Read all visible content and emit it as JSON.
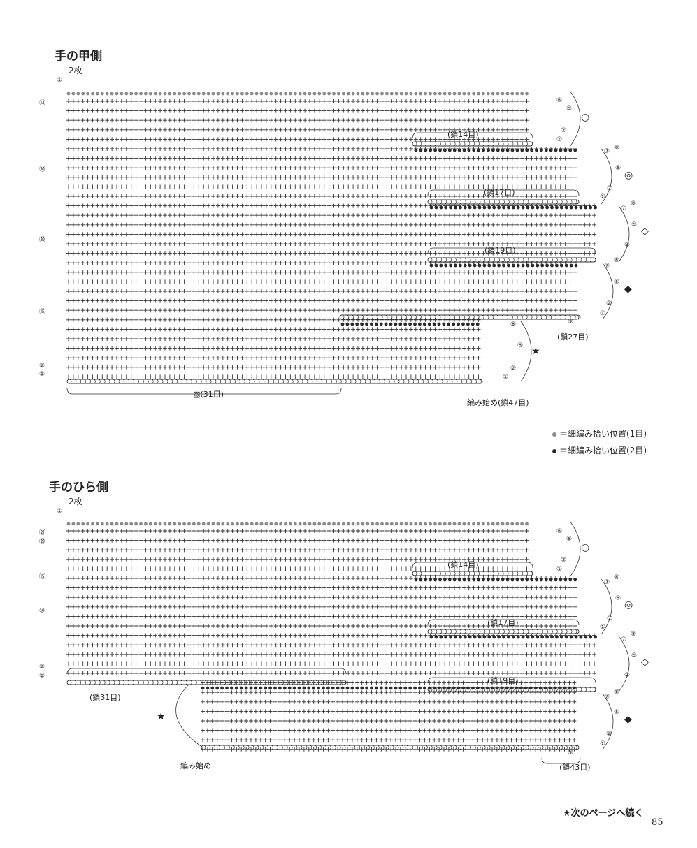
{
  "colors": {
    "ink": "#333333",
    "gray_dot": "#8a8a8a",
    "dark_dot": "#2a2a2a"
  },
  "sections": [
    {
      "title": "手の甲側",
      "count": "2枚",
      "row_labels": [
        "①",
        "⑬",
        "㉚",
        "⑳",
        "⑮",
        "②",
        "①"
      ],
      "chain_labels": [
        "(鎖14目)",
        "(鎖17目)",
        "(鎖19目)",
        "(鎖27目)"
      ],
      "bottom_label": "(31目)",
      "start_label": "編み始め(鎖47目)",
      "markers": [
        "○",
        "◎",
        "◇",
        "◆",
        "★"
      ],
      "side_labels": [
        "⑥",
        "⑤",
        "②",
        "①",
        "⑦",
        "⑧",
        "⑤",
        "②",
        "①",
        "⑦",
        "⑧",
        "⑤",
        "②",
        "⑧",
        "⑦",
        "⑤",
        "②",
        "①",
        "⑨",
        "⑧",
        "⑤",
        "②",
        "①"
      ]
    },
    {
      "title": "手のひら側",
      "count": "2枚",
      "row_labels": [
        "①",
        "㉑",
        "⑳",
        "⑮",
        "⑩",
        "②",
        "①"
      ],
      "chain_labels": [
        "(鎖14目)",
        "(鎖17目)",
        "(鎖19目)",
        "(鎖31目)",
        "(鎖43目)"
      ],
      "start_label": "編み始め",
      "markers": [
        "○",
        "◎",
        "◇",
        "◆",
        "★"
      ],
      "side_labels": [
        "⑥",
        "⑤",
        "②",
        "①",
        "⑦",
        "⑧",
        "⑤",
        "②",
        "①",
        "⑦",
        "⑧",
        "⑤",
        "②",
        "⑧",
        "⑦",
        "⑤",
        "②",
        "①",
        "⑨"
      ]
    }
  ],
  "legend": [
    {
      "text": "＝細編み拾い位置(1目)",
      "color": "#8a8a8a"
    },
    {
      "text": "＝細編み拾い位置(2目)",
      "color": "#2a2a2a"
    }
  ],
  "footer": "★次のページへ続く",
  "page_number": "85"
}
